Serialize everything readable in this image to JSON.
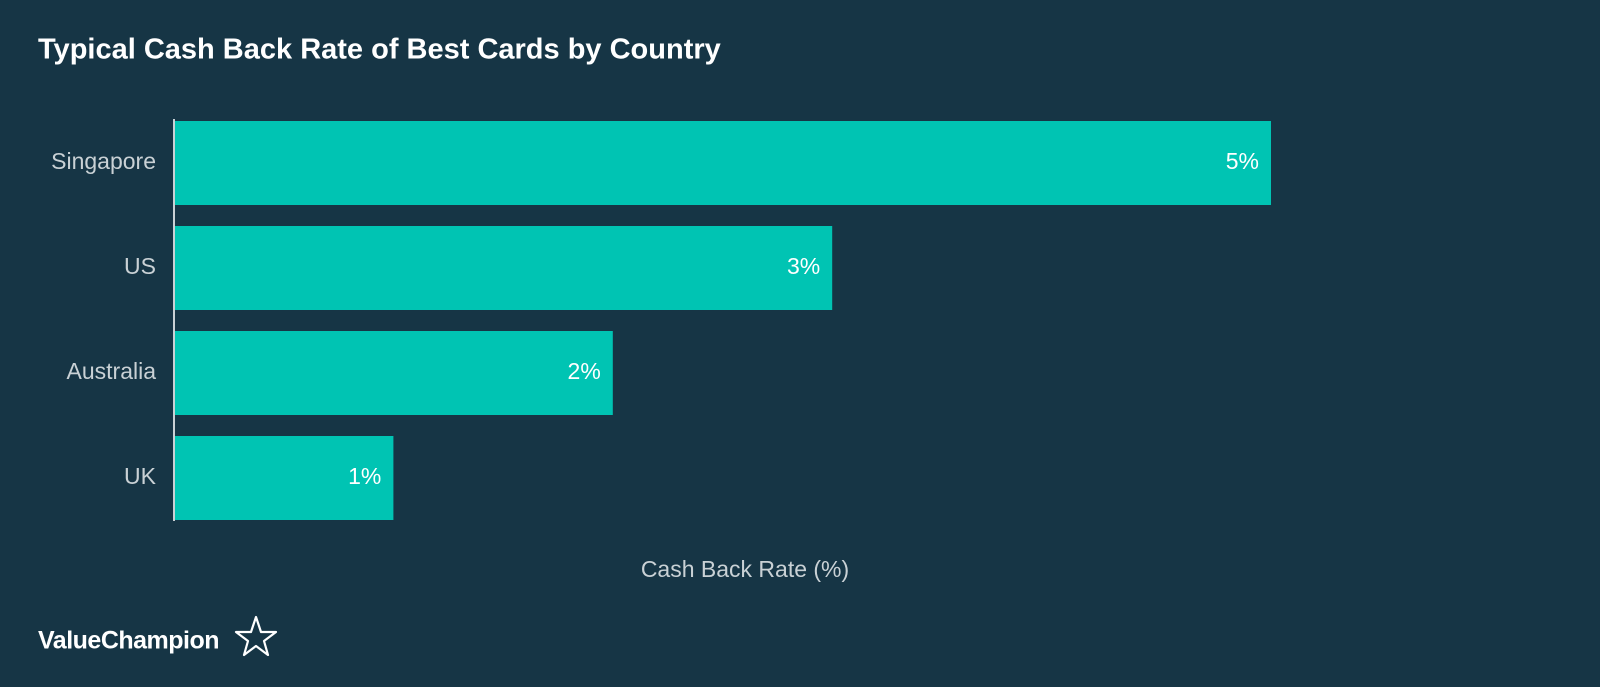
{
  "chart_data": {
    "type": "bar",
    "orientation": "horizontal",
    "title": "Typical Cash Back Rate of Best Cards by Country",
    "categories": [
      "Singapore",
      "US",
      "Australia",
      "UK"
    ],
    "values": [
      5,
      3,
      2,
      1
    ],
    "value_labels": [
      "5%",
      "3%",
      "2%",
      "1%"
    ],
    "color": "#00c4b3",
    "xlabel": "Cash Back Rate (%)",
    "xlim": [
      0,
      5
    ],
    "brand": "ValueChampion"
  }
}
